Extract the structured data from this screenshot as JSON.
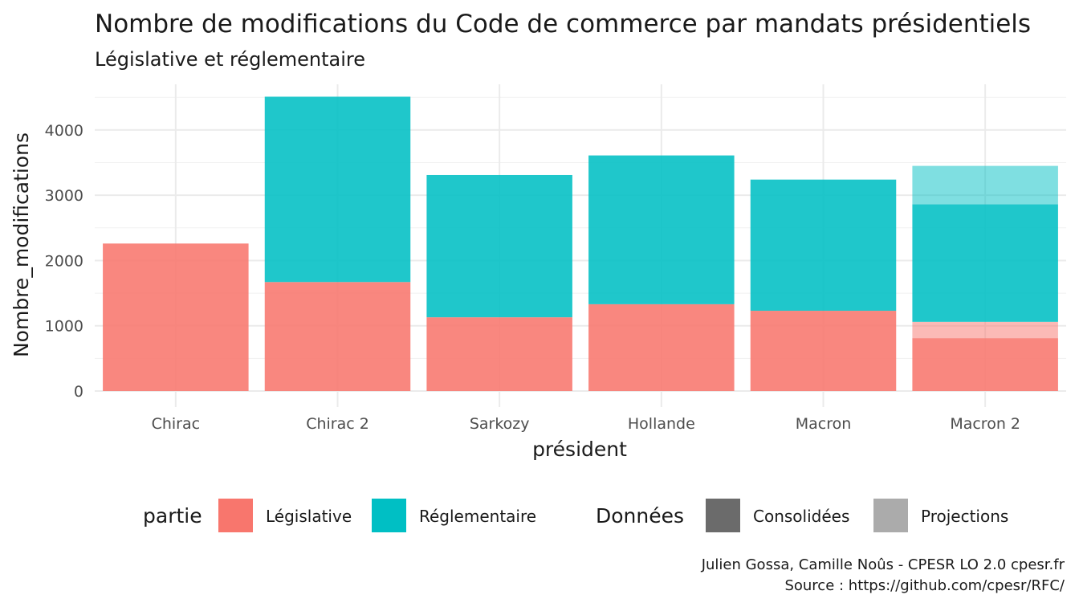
{
  "chart_data": {
    "type": "bar",
    "stacked": true,
    "title": "Nombre de modifications du Code de commerce par mandats présidentiels",
    "subtitle": "Législative et réglementaire",
    "xlabel": "président",
    "ylabel": "Nombre_modifications",
    "categories": [
      "Chirac",
      "Chirac 2",
      "Sarkozy",
      "Hollande",
      "Macron",
      "Macron 2"
    ],
    "ylim": [
      0,
      4700
    ],
    "yticks": [
      0,
      1000,
      2000,
      3000,
      4000
    ],
    "grid": true,
    "series": [
      {
        "name": "Législative",
        "data_type": "Consolidées",
        "color": "#f8766d",
        "values": [
          2260,
          1670,
          1130,
          1330,
          1230,
          810
        ]
      },
      {
        "name": "Législative",
        "data_type": "Projections",
        "color": "#f8766d",
        "values": [
          0,
          0,
          0,
          0,
          0,
          250
        ]
      },
      {
        "name": "Réglementaire",
        "data_type": "Consolidées",
        "color": "#00bfc4",
        "values": [
          0,
          2840,
          2180,
          2280,
          2010,
          1800
        ]
      },
      {
        "name": "Réglementaire",
        "data_type": "Projections",
        "color": "#00bfc4",
        "values": [
          0,
          0,
          0,
          0,
          0,
          590
        ]
      }
    ],
    "legend": {
      "position": "bottom",
      "groups": [
        {
          "title": "partie",
          "entries": [
            {
              "label": "Législative",
              "color": "#f8766d"
            },
            {
              "label": "Réglementaire",
              "color": "#00bfc4"
            }
          ]
        },
        {
          "title": "Données",
          "entries": [
            {
              "label": "Consolidées",
              "color": "#6b6b6b"
            },
            {
              "label": "Projections",
              "color": "#ababab"
            }
          ]
        }
      ]
    },
    "caption": [
      "Julien Gossa, Camille Noûs - CPESR LO 2.0 cpesr.fr",
      "Source : https://github.com/cpesr/RFC/"
    ]
  }
}
